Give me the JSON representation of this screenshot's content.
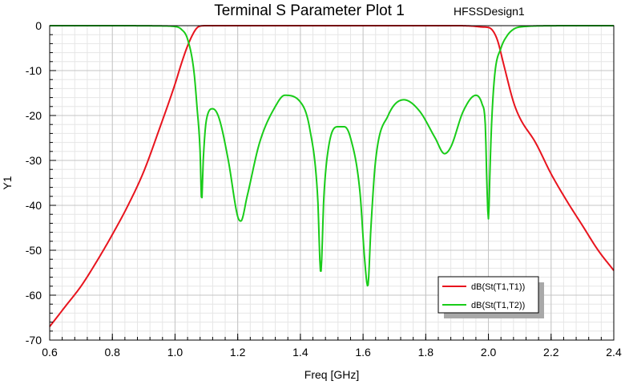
{
  "chart_data": {
    "type": "line",
    "title": "Terminal S Parameter Plot 1",
    "design_name": "HFSSDesign1",
    "xlabel": "Freq [GHz]",
    "ylabel": "Y1",
    "xlim": [
      0.6,
      2.4
    ],
    "ylim": [
      -70,
      0
    ],
    "xticks": [
      "0.6",
      "0.8",
      "1.0",
      "1.2",
      "1.4",
      "1.6",
      "1.8",
      "2.0",
      "2.2",
      "2.4"
    ],
    "yticks": [
      "0",
      "-10",
      "-20",
      "-30",
      "-40",
      "-50",
      "-60",
      "-70"
    ],
    "grid": true,
    "legend_position": "bottom-right",
    "series": [
      {
        "name": "dB(St(T1,T1))",
        "color": "#e8141e",
        "x": [
          0.6,
          0.65,
          0.7,
          0.75,
          0.8,
          0.85,
          0.9,
          0.95,
          1.0,
          1.02,
          1.04,
          1.06,
          1.07,
          1.08,
          1.1,
          1.2,
          1.3,
          1.4,
          1.5,
          1.6,
          1.7,
          1.8,
          1.9,
          1.95,
          1.98,
          2.0,
          2.01,
          2.02,
          2.03,
          2.05,
          2.08,
          2.1,
          2.15,
          2.2,
          2.25,
          2.3,
          2.35,
          2.4
        ],
        "y": [
          -67,
          -62.5,
          -58,
          -52.5,
          -46.5,
          -40,
          -32.5,
          -23,
          -13,
          -8.5,
          -4.5,
          -1.5,
          -0.5,
          -0.1,
          0,
          0,
          0,
          0,
          0,
          0,
          0,
          0,
          0,
          -0.1,
          -0.3,
          -0.4,
          -0.8,
          -1.8,
          -3.5,
          -9,
          -17,
          -20.5,
          -26,
          -33,
          -39,
          -44.5,
          -50,
          -54.5
        ]
      },
      {
        "name": "dB(St(T1,T2))",
        "color": "#19cc19",
        "x": [
          0.6,
          0.8,
          0.9,
          0.95,
          1.0,
          1.02,
          1.04,
          1.06,
          1.07,
          1.08,
          1.085,
          1.09,
          1.1,
          1.12,
          1.14,
          1.17,
          1.2,
          1.21,
          1.23,
          1.27,
          1.32,
          1.35,
          1.4,
          1.43,
          1.455,
          1.465,
          1.475,
          1.49,
          1.52,
          1.54,
          1.56,
          1.59,
          1.605,
          1.615,
          1.625,
          1.64,
          1.68,
          1.73,
          1.78,
          1.83,
          1.86,
          1.88,
          1.92,
          1.96,
          1.98,
          1.99,
          1.995,
          2.0,
          2.005,
          2.01,
          2.02,
          2.04,
          2.06,
          2.08,
          2.1,
          2.2,
          2.3,
          2.4
        ],
        "y": [
          0,
          0,
          -0.02,
          -0.05,
          -0.2,
          -0.8,
          -3,
          -10,
          -18,
          -28,
          -39,
          -30,
          -21,
          -18.5,
          -20.5,
          -30,
          -42.5,
          -43.5,
          -38,
          -26,
          -18,
          -15.5,
          -17,
          -23,
          -38,
          -55,
          -38,
          -27,
          -22.5,
          -22.5,
          -25,
          -37,
          -52,
          -58,
          -45,
          -30,
          -20,
          -16.5,
          -19,
          -25,
          -28.5,
          -27,
          -19,
          -15.5,
          -17.5,
          -22,
          -35,
          -43,
          -32,
          -22,
          -11,
          -5,
          -2.2,
          -0.8,
          -0.3,
          -0.02,
          0,
          0
        ]
      }
    ]
  }
}
